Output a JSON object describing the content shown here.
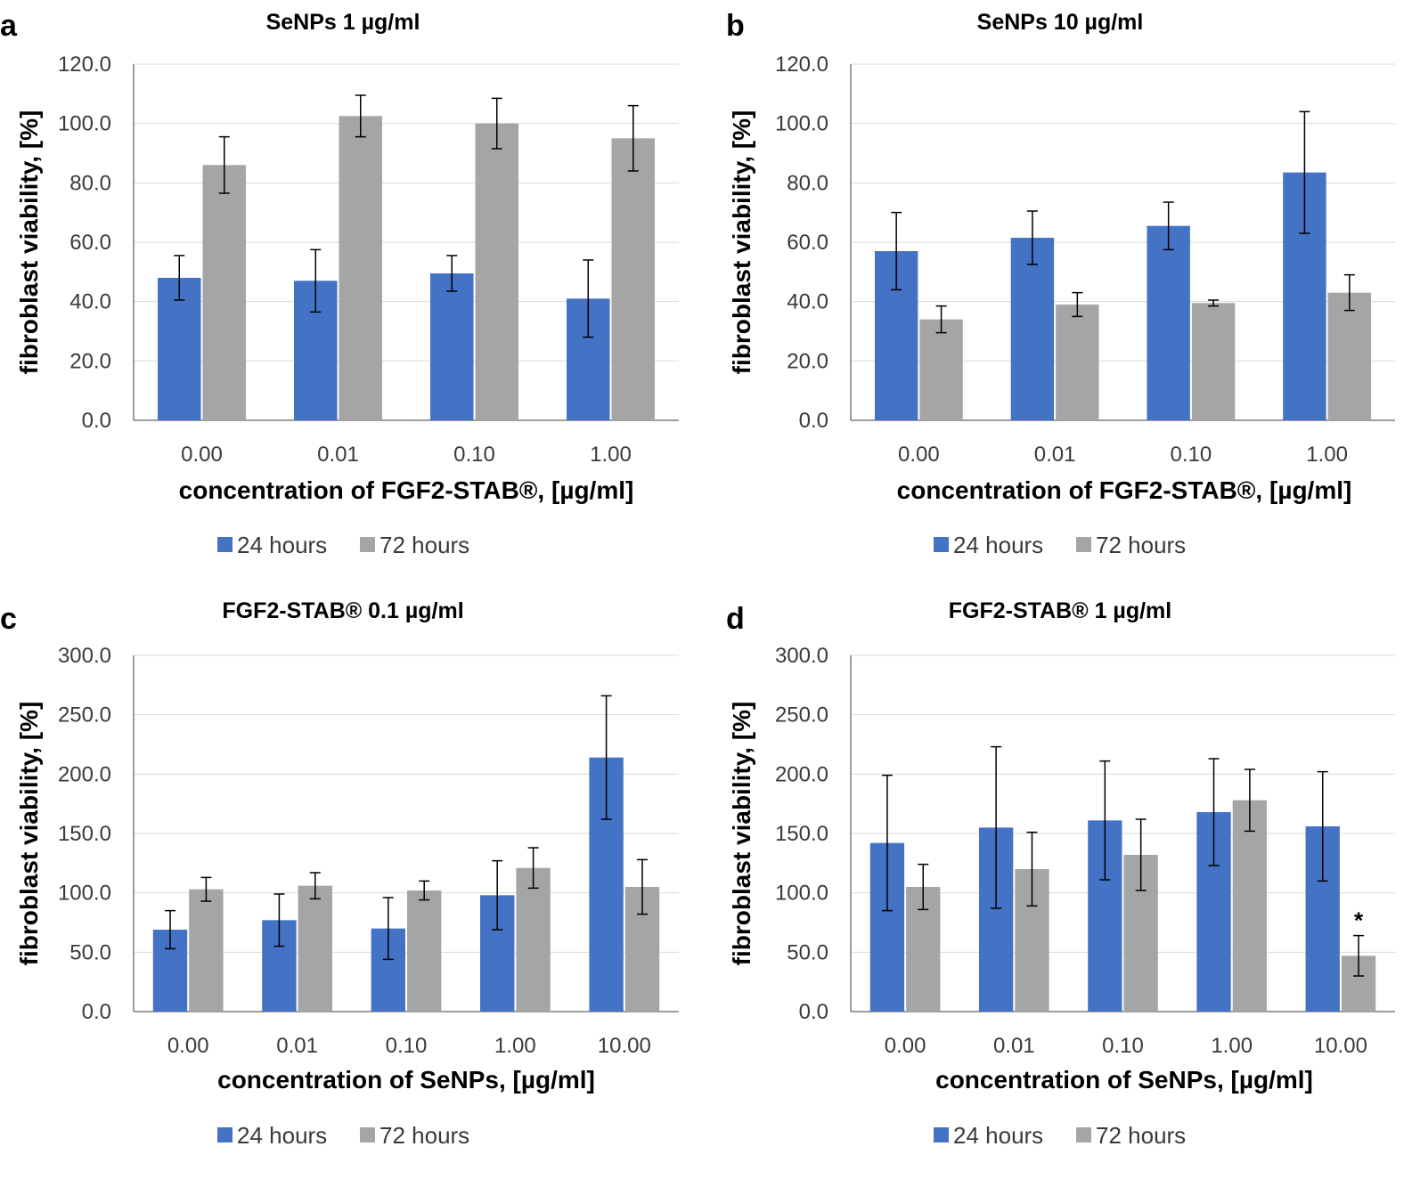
{
  "colors": {
    "series_24": "#4472c4",
    "series_72": "#a5a5a5"
  },
  "chart_data": [
    {
      "panel": "a",
      "type": "bar",
      "title": "SeNPs 1 µg/ml",
      "xlabel": "concentration of FGF2-STAB®, [µg/ml]",
      "ylabel": "fibroblast viability, [%]",
      "ylim": [
        0,
        120
      ],
      "ytick_step": 20,
      "yticks": [
        "0.0",
        "20.0",
        "40.0",
        "60.0",
        "80.0",
        "100.0",
        "120.0"
      ],
      "grid": true,
      "legend_position": "bottom",
      "categories": [
        "0.00",
        "0.01",
        "0.10",
        "1.00"
      ],
      "series": [
        {
          "name": "24 hours",
          "values": [
            48,
            47,
            49.5,
            41
          ],
          "errors": [
            7.5,
            10.5,
            6,
            13
          ]
        },
        {
          "name": "72 hours",
          "values": [
            86,
            102.5,
            100,
            95
          ],
          "errors": [
            9.5,
            7,
            8.5,
            11
          ]
        }
      ],
      "annotations": []
    },
    {
      "panel": "b",
      "type": "bar",
      "title": "SeNPs 10 µg/ml",
      "xlabel": "concentration of FGF2-STAB®, [µg/ml]",
      "ylabel": "fibroblast viability, [%]",
      "ylim": [
        0,
        120
      ],
      "ytick_step": 20,
      "yticks": [
        "0.0",
        "20.0",
        "40.0",
        "60.0",
        "80.0",
        "100.0",
        "120.0"
      ],
      "grid": true,
      "legend_position": "bottom",
      "categories": [
        "0.00",
        "0.01",
        "0.10",
        "1.00"
      ],
      "series": [
        {
          "name": "24 hours",
          "values": [
            57,
            61.5,
            65.5,
            83.5
          ],
          "errors": [
            13,
            9,
            8,
            20.5
          ]
        },
        {
          "name": "72 hours",
          "values": [
            34,
            39,
            39.5,
            43
          ],
          "errors": [
            4.5,
            4,
            1,
            6
          ]
        }
      ],
      "annotations": []
    },
    {
      "panel": "c",
      "type": "bar",
      "title": "FGF2-STAB® 0.1 µg/ml",
      "xlabel": "concentration of SeNPs, [µg/ml]",
      "ylabel": "fibroblast viability, [%]",
      "ylim": [
        0,
        300
      ],
      "ytick_step": 50,
      "yticks": [
        "0.0",
        "50.0",
        "100.0",
        "150.0",
        "200.0",
        "250.0",
        "300.0"
      ],
      "grid": true,
      "legend_position": "bottom",
      "categories": [
        "0.00",
        "0.01",
        "0.10",
        "1.00",
        "10.00"
      ],
      "series": [
        {
          "name": "24 hours",
          "values": [
            69,
            77,
            70,
            98,
            214
          ],
          "errors": [
            16,
            22,
            26,
            29,
            52
          ]
        },
        {
          "name": "72 hours",
          "values": [
            103,
            106,
            102,
            121,
            105
          ],
          "errors": [
            10,
            11,
            8,
            17,
            23
          ]
        }
      ],
      "annotations": []
    },
    {
      "panel": "d",
      "type": "bar",
      "title": "FGF2-STAB® 1 µg/ml",
      "xlabel": "concentration of SeNPs, [µg/ml]",
      "ylabel": "fibroblast viability, [%]",
      "ylim": [
        0,
        300
      ],
      "ytick_step": 50,
      "yticks": [
        "0.0",
        "50.0",
        "100.0",
        "150.0",
        "200.0",
        "250.0",
        "300.0"
      ],
      "grid": true,
      "legend_position": "bottom",
      "categories": [
        "0.00",
        "0.01",
        "0.10",
        "1.00",
        "10.00"
      ],
      "series": [
        {
          "name": "24 hours",
          "values": [
            142,
            155,
            161,
            168,
            156
          ],
          "errors": [
            57,
            68,
            50,
            45,
            46
          ]
        },
        {
          "name": "72 hours",
          "values": [
            105,
            120,
            132,
            178,
            47
          ],
          "errors": [
            19,
            31,
            30,
            26,
            17
          ]
        }
      ],
      "annotations": [
        {
          "text": "*",
          "category": "10.00",
          "series": "72 hours"
        }
      ]
    }
  ]
}
